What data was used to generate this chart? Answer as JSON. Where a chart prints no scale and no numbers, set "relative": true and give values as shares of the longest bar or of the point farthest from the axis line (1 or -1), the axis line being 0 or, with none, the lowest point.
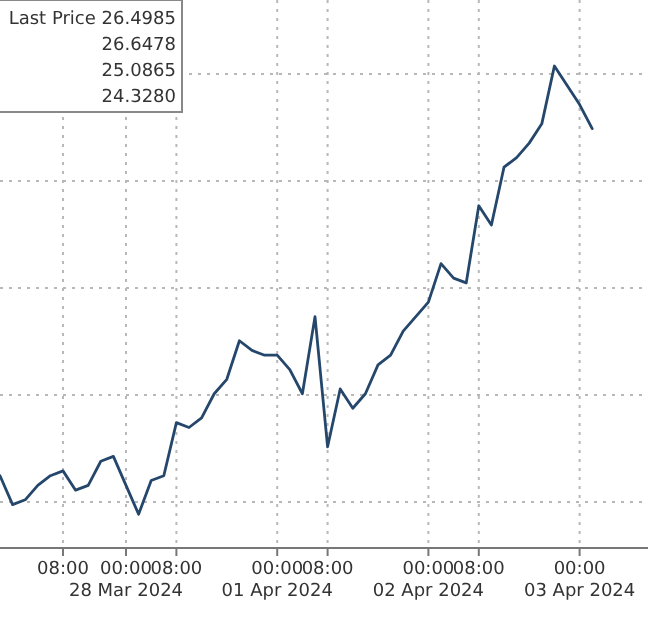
{
  "chart_data": {
    "type": "line",
    "relative": true,
    "grid": true,
    "categories": [
      null,
      null,
      null,
      null,
      null,
      "08:00",
      null,
      null,
      null,
      null,
      "00:00\n28 Mar 2024",
      null,
      null,
      null,
      "08:00",
      null,
      null,
      null,
      null,
      null,
      null,
      null,
      "00:00\n01 Apr 2024",
      null,
      null,
      null,
      "08:00",
      null,
      null,
      null,
      null,
      null,
      null,
      null,
      "00:00\n02 Apr 2024",
      null,
      null,
      null,
      "08:00",
      null,
      null,
      null,
      null,
      null,
      null,
      null,
      "00:00\n03 Apr 2024",
      null,
      null,
      null,
      null
    ],
    "series": [
      {
        "color": "#24476b",
        "values": [
          0.15,
          0.09,
          0.1,
          0.13,
          0.15,
          0.16,
          0.12,
          0.13,
          0.18,
          0.19,
          0.13,
          0.07,
          0.14,
          0.15,
          0.26,
          0.25,
          0.27,
          0.32,
          0.35,
          0.43,
          0.41,
          0.4,
          0.4,
          0.37,
          0.32,
          0.48,
          0.21,
          0.33,
          0.29,
          0.32,
          0.38,
          0.4,
          0.45,
          0.48,
          0.51,
          0.59,
          0.56,
          0.55,
          0.71,
          0.67,
          0.79,
          0.81,
          0.84,
          0.88,
          1,
          0.96,
          0.92,
          0.87,
          null,
          null,
          null
        ]
      }
    ],
    "annotations": [
      "Last Price 26.4985",
      "26.6478",
      "25.0865",
      "24.3280"
    ]
  }
}
